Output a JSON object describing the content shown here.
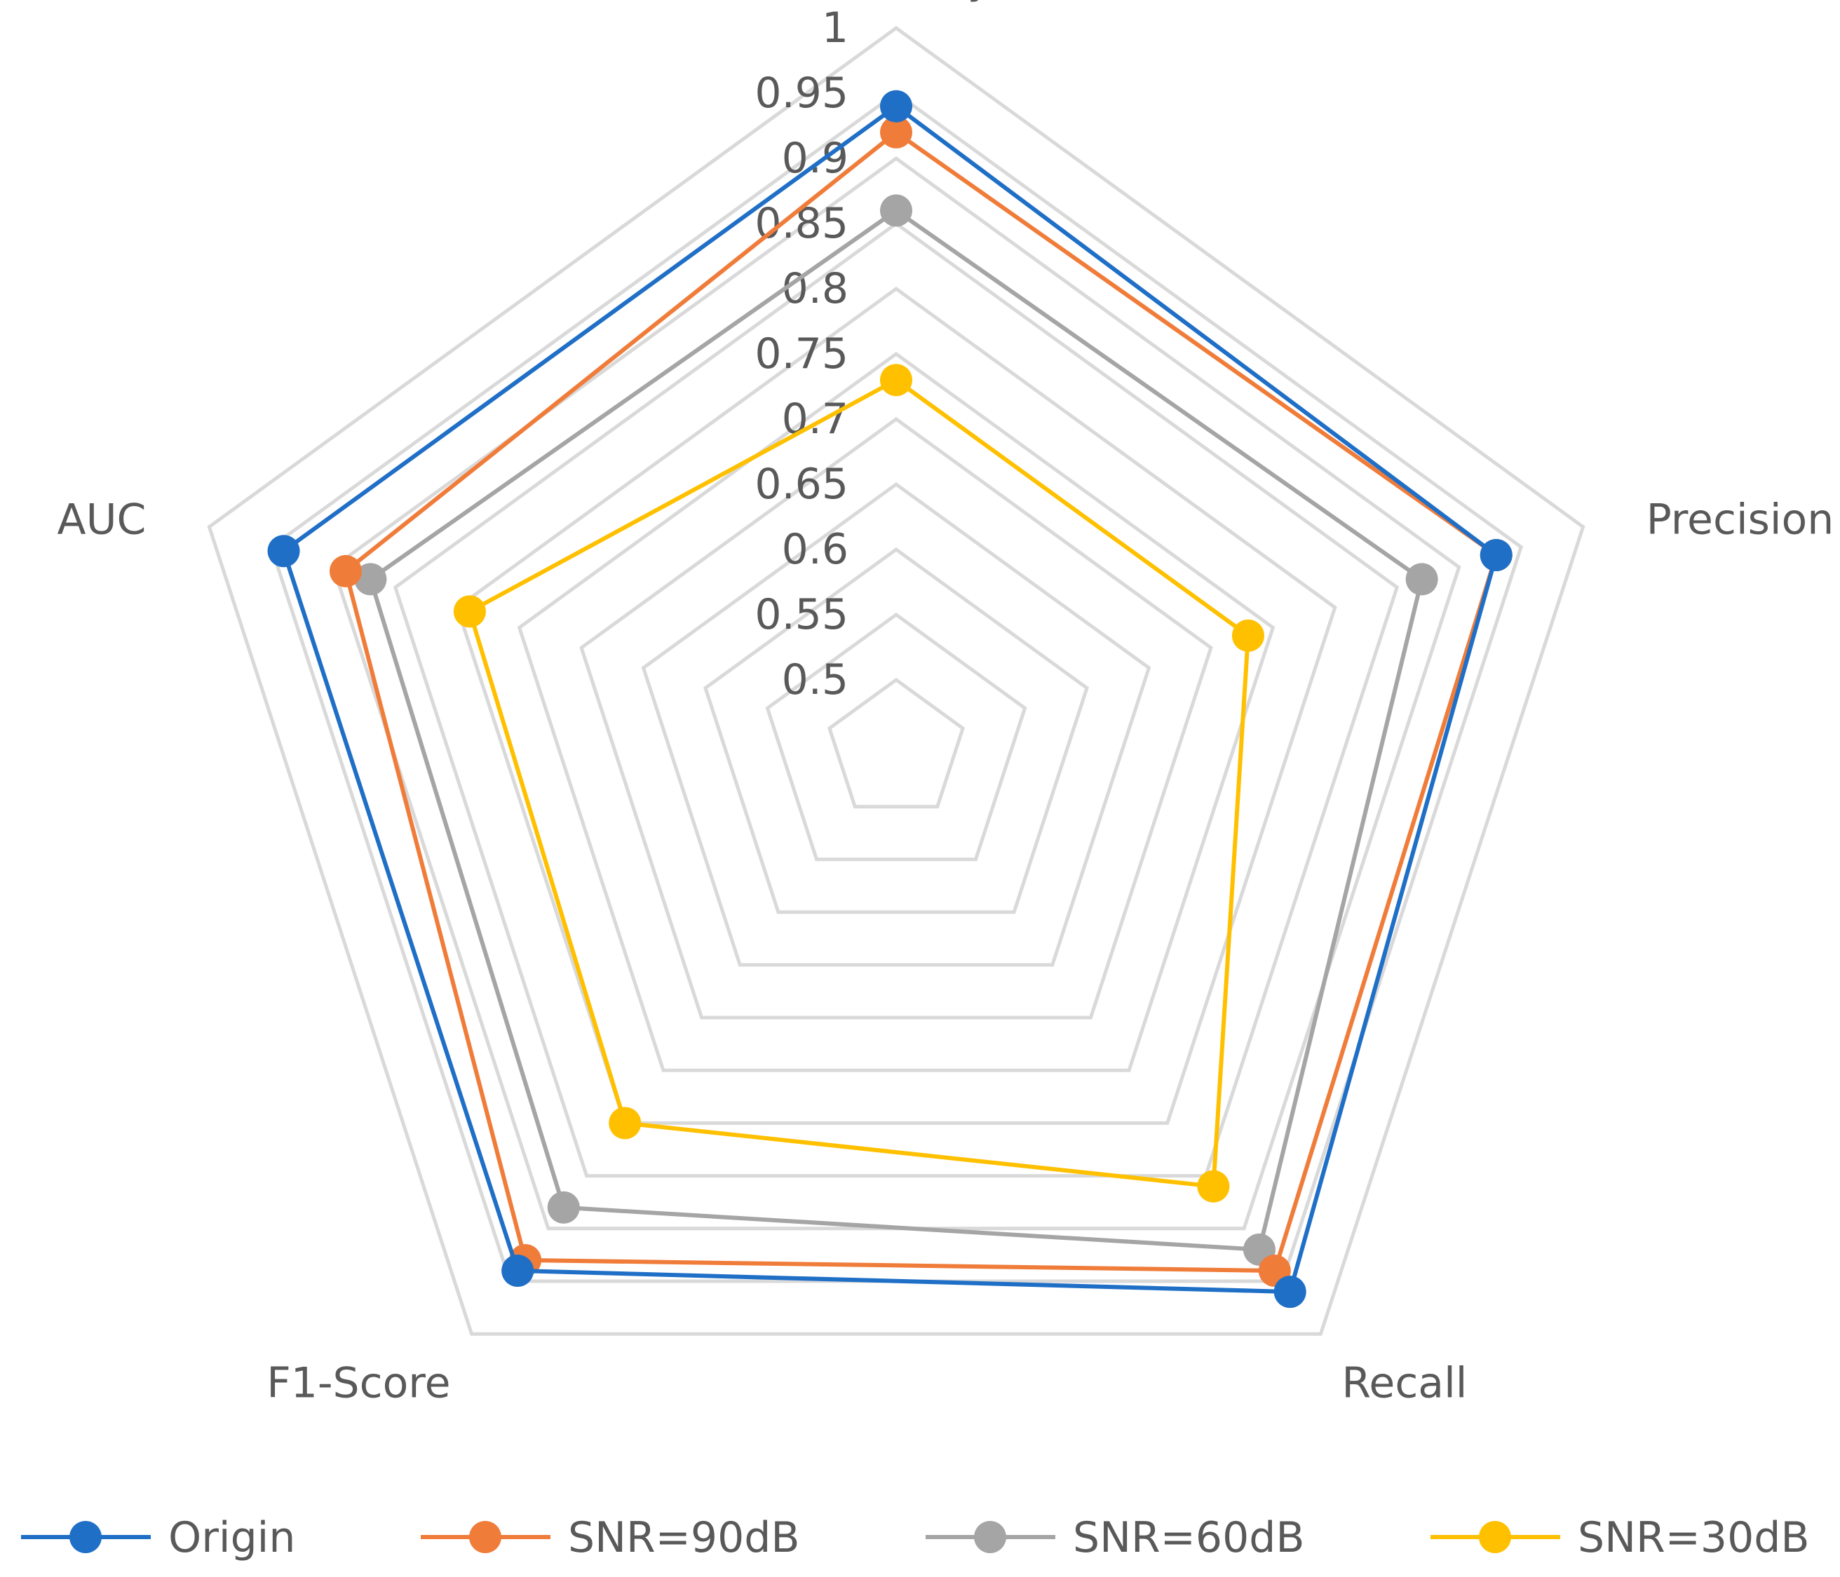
{
  "chart_data": {
    "type": "radar",
    "categories": [
      "Accuracy",
      "Precision",
      "Recall",
      "F1-Score",
      "AUC"
    ],
    "rlim": [
      0.5,
      1
    ],
    "ticks": [
      "1",
      "0.95",
      "0.9",
      "0.85",
      "0.8",
      "0.75",
      "0.7",
      "0.65",
      "0.6",
      "0.55",
      "0.5"
    ],
    "grid": true,
    "legend_position": "bottom",
    "series": [
      {
        "name": "Origin",
        "color": "#1f6fc7",
        "values": [
          0.94,
          0.93,
          0.96,
          0.94,
          0.94
        ]
      },
      {
        "name": "SNR=90dB",
        "color": "#f07c3a",
        "values": [
          0.92,
          0.93,
          0.94,
          0.93,
          0.89
        ]
      },
      {
        "name": "SNR=60dB",
        "color": "#a5a5a5",
        "values": [
          0.86,
          0.87,
          0.92,
          0.88,
          0.87
        ]
      },
      {
        "name": "SNR=30dB",
        "color": "#ffc000",
        "values": [
          0.73,
          0.73,
          0.86,
          0.8,
          0.79
        ]
      }
    ]
  }
}
